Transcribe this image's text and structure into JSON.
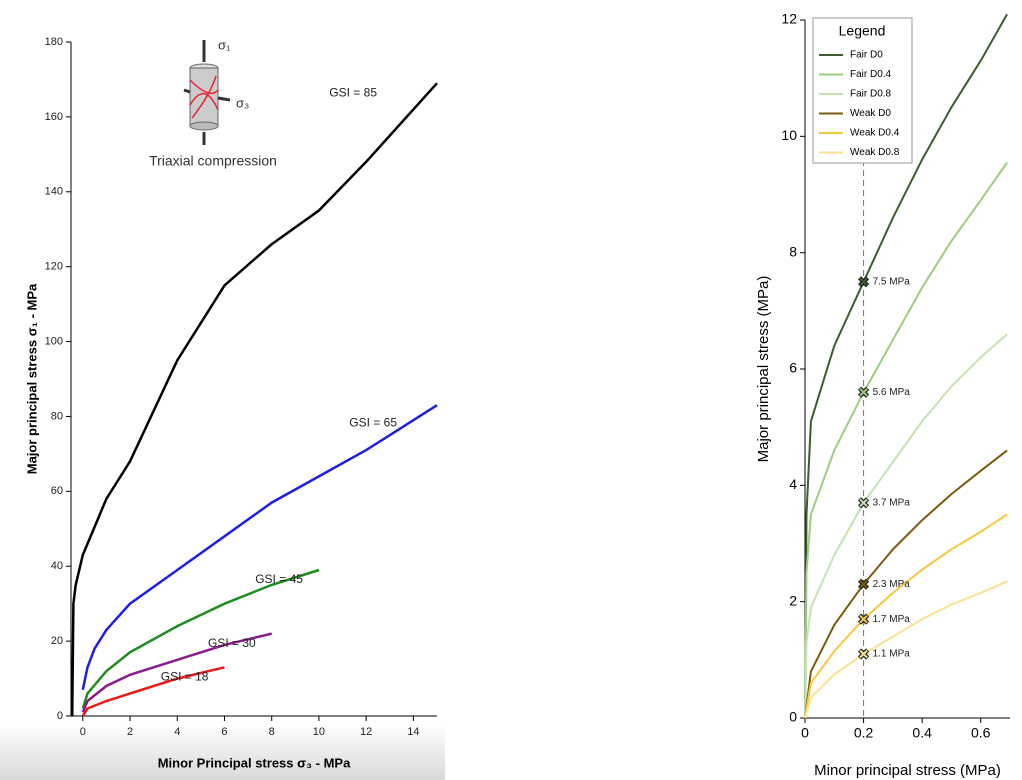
{
  "chart_data": [
    {
      "type": "line",
      "x_label": "Minor Principal stress σ₃ - MPa",
      "y_label": "Major principal stress σ₁ - MPa",
      "inset": {
        "sigma1": "σ₁",
        "sigma3": "σ₃",
        "caption": "Triaxial compression"
      },
      "xlim": [
        -0.5,
        15
      ],
      "ylim": [
        0,
        180
      ],
      "xticks": [
        0,
        2,
        4,
        6,
        8,
        10,
        12,
        14
      ],
      "yticks": [
        0,
        20,
        40,
        60,
        80,
        100,
        120,
        140,
        160,
        180
      ],
      "series": [
        {
          "name": "GSI = 85",
          "color": "#000000",
          "x": [
            -0.45,
            -0.4,
            -0.3,
            0,
            1,
            2,
            4,
            6,
            8,
            10,
            12,
            15
          ],
          "values": [
            0,
            30,
            35,
            43,
            58,
            68,
            95,
            115,
            126,
            135,
            148,
            169
          ]
        },
        {
          "name": "GSI = 65",
          "color": "#1f1fe0",
          "x": [
            0,
            0.2,
            0.5,
            1,
            2,
            4,
            6,
            8,
            10,
            12,
            15
          ],
          "values": [
            7,
            13,
            18,
            23,
            30,
            39,
            48,
            57,
            64,
            71,
            83
          ]
        },
        {
          "name": "GSI = 45",
          "color": "#1e8c1e",
          "x": [
            0,
            0.2,
            1,
            2,
            4,
            6,
            8,
            10
          ],
          "values": [
            2,
            6,
            12,
            17,
            24,
            30,
            35,
            39
          ]
        },
        {
          "name": "GSI = 30",
          "color": "#8b1a8b",
          "x": [
            0,
            0.2,
            1,
            2,
            4,
            6,
            8
          ],
          "values": [
            1,
            4,
            8,
            11,
            15,
            19,
            22
          ]
        },
        {
          "name": "GSI = 18",
          "color": "#e81a1a",
          "x": [
            0,
            0.2,
            1,
            2,
            4,
            6
          ],
          "values": [
            0,
            2,
            4,
            6,
            10,
            13
          ]
        }
      ]
    },
    {
      "type": "line",
      "x_label": "Minor principal stress (MPa)",
      "y_label": "Major principal stress (MPa)",
      "legend_title": "Legend",
      "legend": "upper left",
      "xlim": [
        0,
        0.7
      ],
      "ylim": [
        0,
        12
      ],
      "xticks": [
        0,
        0.2,
        0.4,
        0.6
      ],
      "yticks": [
        0,
        2,
        4,
        6,
        8,
        10,
        12
      ],
      "vline": 0.2,
      "series": [
        {
          "name": "Fair D0",
          "color": "#3b5e2b",
          "x": [
            0,
            0.005,
            0.02,
            0.1,
            0.2,
            0.3,
            0.4,
            0.5,
            0.6,
            0.69
          ],
          "values": [
            0,
            3.5,
            5.1,
            6.4,
            7.5,
            8.6,
            9.6,
            10.5,
            11.3,
            12.1
          ]
        },
        {
          "name": "Fair D0.4",
          "color": "#9ccd80",
          "x": [
            0,
            0.005,
            0.02,
            0.1,
            0.2,
            0.3,
            0.4,
            0.5,
            0.6,
            0.69
          ],
          "values": [
            0,
            2.5,
            3.5,
            4.6,
            5.6,
            6.5,
            7.4,
            8.2,
            8.9,
            9.55
          ]
        },
        {
          "name": "Fair D0.8",
          "color": "#c6e2b2",
          "x": [
            0,
            0.005,
            0.02,
            0.1,
            0.2,
            0.3,
            0.4,
            0.5,
            0.6,
            0.69
          ],
          "values": [
            0,
            1.3,
            1.9,
            2.8,
            3.7,
            4.4,
            5.1,
            5.7,
            6.2,
            6.6
          ]
        },
        {
          "name": "Weak D0",
          "color": "#7b5a10",
          "x": [
            0,
            0.02,
            0.1,
            0.2,
            0.3,
            0.4,
            0.5,
            0.6,
            0.69
          ],
          "values": [
            0,
            0.8,
            1.6,
            2.3,
            2.9,
            3.4,
            3.85,
            4.25,
            4.6
          ]
        },
        {
          "name": "Weak D0.4",
          "color": "#f5c842",
          "x": [
            0,
            0.02,
            0.1,
            0.2,
            0.3,
            0.4,
            0.5,
            0.6,
            0.69
          ],
          "values": [
            0,
            0.6,
            1.15,
            1.7,
            2.15,
            2.55,
            2.9,
            3.2,
            3.5
          ]
        },
        {
          "name": "Weak D0.8",
          "color": "#fbe28e",
          "x": [
            0,
            0.02,
            0.1,
            0.2,
            0.3,
            0.4,
            0.5,
            0.6,
            0.69
          ],
          "values": [
            0,
            0.35,
            0.75,
            1.1,
            1.4,
            1.7,
            1.95,
            2.15,
            2.35
          ]
        }
      ],
      "markers": [
        {
          "x": 0.2,
          "y": 7.5,
          "label": "7.5 MPa",
          "color": "#3b5e2b"
        },
        {
          "x": 0.2,
          "y": 5.6,
          "label": "5.6 MPa",
          "color": "#9ccd80"
        },
        {
          "x": 0.2,
          "y": 3.7,
          "label": "3.7 MPa",
          "color": "#c6e2b2"
        },
        {
          "x": 0.2,
          "y": 2.3,
          "label": "2.3 MPa",
          "color": "#7b5a10"
        },
        {
          "x": 0.2,
          "y": 1.7,
          "label": "1.7 MPa",
          "color": "#f5c842"
        },
        {
          "x": 0.2,
          "y": 1.1,
          "label": "1.1 MPa",
          "color": "#fbe28e"
        }
      ]
    }
  ]
}
